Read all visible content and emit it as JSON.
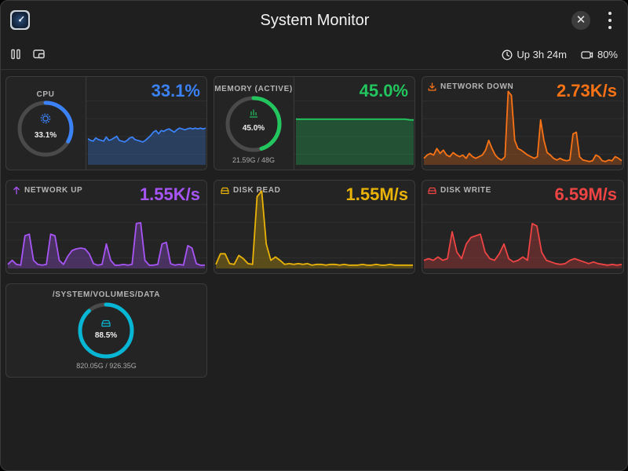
{
  "window": {
    "title": "System Monitor",
    "icon": "gauge-app-icon",
    "close_label": "✕"
  },
  "toolbar": {
    "pause_icon": "pause-icon",
    "pip_icon": "picture-in-picture-icon",
    "uptime": "Up 3h 24m",
    "battery": "80%"
  },
  "cards": {
    "cpu": {
      "label": "CPU",
      "ring_text": "33.1%",
      "value": "33.1%",
      "fraction": 0.331,
      "color": "#3b82f6",
      "series": [
        0.32,
        0.3,
        0.29,
        0.33,
        0.31,
        0.3,
        0.29,
        0.34,
        0.3,
        0.31,
        0.33,
        0.35,
        0.3,
        0.29,
        0.28,
        0.3,
        0.33,
        0.34,
        0.31,
        0.3,
        0.29,
        0.28,
        0.3,
        0.33,
        0.36,
        0.4,
        0.42,
        0.38,
        0.42,
        0.41,
        0.43,
        0.44,
        0.42,
        0.4,
        0.43,
        0.45,
        0.44,
        0.43,
        0.44,
        0.45,
        0.44,
        0.45,
        0.44,
        0.45,
        0.44,
        0.45
      ]
    },
    "memory": {
      "label": "MEMORY (ACTIVE)",
      "ring_text": "45.0%",
      "value": "45.0%",
      "sub": "21.59G / 48G",
      "fraction": 0.45,
      "color": "#22c55e",
      "series": [
        0.56,
        0.56,
        0.56,
        0.56,
        0.56,
        0.56,
        0.56,
        0.56,
        0.56,
        0.56,
        0.56,
        0.56,
        0.56,
        0.56,
        0.56,
        0.56,
        0.56,
        0.56,
        0.56,
        0.56,
        0.56,
        0.56,
        0.56,
        0.56,
        0.56,
        0.56,
        0.56,
        0.56,
        0.56,
        0.56,
        0.56,
        0.56,
        0.56,
        0.56,
        0.56,
        0.56,
        0.56,
        0.555,
        0.55,
        0.55
      ]
    },
    "network_down": {
      "label": "NETWORK DOWN",
      "value": "2.73K/s",
      "color": "#f97316",
      "series": [
        0.08,
        0.12,
        0.14,
        0.12,
        0.2,
        0.14,
        0.18,
        0.12,
        0.1,
        0.15,
        0.12,
        0.1,
        0.12,
        0.08,
        0.14,
        0.1,
        0.08,
        0.1,
        0.12,
        0.18,
        0.3,
        0.2,
        0.12,
        0.08,
        0.06,
        0.1,
        0.9,
        0.85,
        0.3,
        0.2,
        0.18,
        0.15,
        0.12,
        0.1,
        0.08,
        0.1,
        0.55,
        0.3,
        0.15,
        0.12,
        0.08,
        0.06,
        0.08,
        0.06,
        0.05,
        0.06,
        0.38,
        0.4,
        0.1,
        0.06,
        0.05,
        0.04,
        0.05,
        0.12,
        0.1,
        0.05,
        0.04,
        0.06,
        0.05,
        0.1,
        0.08,
        0.05
      ]
    },
    "network_up": {
      "label": "NETWORK UP",
      "value": "1.55K/s",
      "color": "#a855f7",
      "series": [
        0.05,
        0.1,
        0.05,
        0.04,
        0.4,
        0.42,
        0.1,
        0.05,
        0.04,
        0.05,
        0.42,
        0.4,
        0.1,
        0.05,
        0.15,
        0.22,
        0.24,
        0.25,
        0.24,
        0.18,
        0.06,
        0.04,
        0.05,
        0.3,
        0.1,
        0.04,
        0.04,
        0.05,
        0.04,
        0.05,
        0.55,
        0.56,
        0.1,
        0.04,
        0.04,
        0.05,
        0.3,
        0.32,
        0.06,
        0.04,
        0.05,
        0.04,
        0.28,
        0.25,
        0.06,
        0.04,
        0.04
      ]
    },
    "disk_read": {
      "label": "DISK READ",
      "value": "1.55M/s",
      "color": "#eab308",
      "series": [
        0.05,
        0.18,
        0.18,
        0.06,
        0.05,
        0.16,
        0.12,
        0.06,
        0.05,
        0.88,
        0.95,
        0.3,
        0.1,
        0.14,
        0.1,
        0.05,
        0.06,
        0.05,
        0.06,
        0.05,
        0.06,
        0.04,
        0.05,
        0.05,
        0.04,
        0.05,
        0.05,
        0.04,
        0.05,
        0.04,
        0.04,
        0.04,
        0.05,
        0.04,
        0.04,
        0.05,
        0.04,
        0.04,
        0.05,
        0.04,
        0.04,
        0.04,
        0.04,
        0.04
      ]
    },
    "disk_write": {
      "label": "DISK WRITE",
      "value": "6.59M/s",
      "color": "#ef4444",
      "series": [
        0.1,
        0.12,
        0.1,
        0.14,
        0.1,
        0.12,
        0.45,
        0.2,
        0.12,
        0.3,
        0.38,
        0.4,
        0.42,
        0.2,
        0.12,
        0.1,
        0.18,
        0.3,
        0.12,
        0.08,
        0.1,
        0.14,
        0.1,
        0.55,
        0.52,
        0.2,
        0.1,
        0.08,
        0.06,
        0.05,
        0.06,
        0.1,
        0.12,
        0.1,
        0.08,
        0.06,
        0.08,
        0.06,
        0.05,
        0.04,
        0.05,
        0.04,
        0.05
      ]
    },
    "volume": {
      "label": "/SYSTEM/VOLUMES/DATA",
      "ring_text": "88.5%",
      "sub": "820.05G / 926.35G",
      "fraction": 0.885,
      "color": "#06b6d4"
    }
  }
}
